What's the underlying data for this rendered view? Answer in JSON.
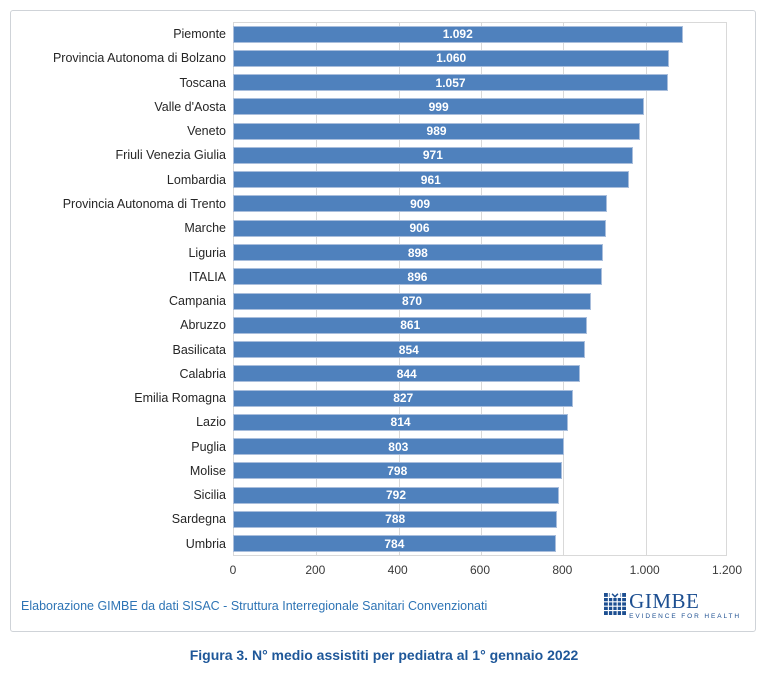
{
  "chart_data": {
    "type": "bar",
    "orientation": "horizontal",
    "title": "",
    "categories": [
      "Piemonte",
      "Provincia Autonoma di Bolzano",
      "Toscana",
      "Valle d'Aosta",
      "Veneto",
      "Friuli Venezia Giulia",
      "Lombardia",
      "Provincia Autonoma di Trento",
      "Marche",
      "Liguria",
      "ITALIA",
      "Campania",
      "Abruzzo",
      "Basilicata",
      "Calabria",
      "Emilia Romagna",
      "Lazio",
      "Puglia",
      "Molise",
      "Sicilia",
      "Sardegna",
      "Umbria"
    ],
    "values": [
      1092,
      1060,
      1057,
      999,
      989,
      971,
      961,
      909,
      906,
      898,
      896,
      870,
      861,
      854,
      844,
      827,
      814,
      803,
      798,
      792,
      788,
      784
    ],
    "value_labels": [
      "1.092",
      "1.060",
      "1.057",
      "999",
      "989",
      "971",
      "961",
      "909",
      "906",
      "898",
      "896",
      "870",
      "861",
      "854",
      "844",
      "827",
      "814",
      "803",
      "798",
      "792",
      "788",
      "784"
    ],
    "xlabel": "",
    "ylabel": "",
    "xlim": [
      0,
      1200
    ],
    "x_ticks": [
      "0",
      "200",
      "400",
      "600",
      "800",
      "1.000",
      "1.200"
    ],
    "grid": true,
    "legend": false,
    "bar_color": "#4F81BD",
    "bar_border_color": "#A9BEDC",
    "value_label_color": "#FFFFFF",
    "gridline_color": "#D9D9D9"
  },
  "footer": {
    "source_text": "Elaborazione GIMBE da dati SISAC - Struttura Interregionale Sanitari Convenzionati",
    "logo": {
      "name": "GIMBE",
      "tagline": "EVIDENCE FOR HEALTH",
      "color": "#1D4F91"
    }
  },
  "caption": {
    "text": "Figura 3. N° medio assistiti per pediatra al 1° gennaio 2022",
    "color": "#1E5799"
  }
}
